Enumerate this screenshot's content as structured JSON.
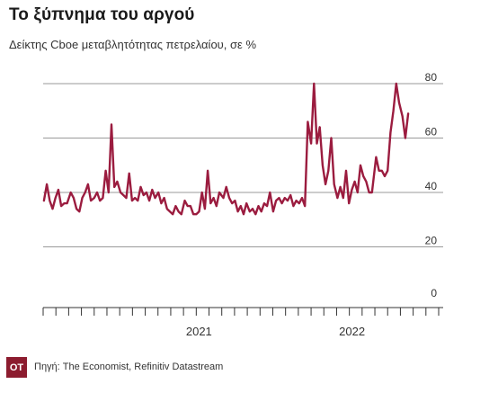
{
  "chart_data": {
    "type": "line",
    "title": "Το ξύπνημα του αργού",
    "subtitle": "Δείκτης Cboe μεταβλητότητας πετρελαίου, σε %",
    "xlabel": "",
    "ylabel": "",
    "ylim": [
      0,
      80
    ],
    "yticks": [
      0,
      20,
      40,
      60,
      80
    ],
    "x_range": [
      "2020-01",
      "2022-08"
    ],
    "x_tick_labels": [
      {
        "label": "2021",
        "x": "2021-01"
      },
      {
        "label": "2022",
        "x": "2022-01"
      }
    ],
    "grid": true,
    "legend": "none",
    "color": "#9b1c3f",
    "series": [
      {
        "points": [
          [
            "2020-01-03",
            37
          ],
          [
            "2020-01-10",
            43
          ],
          [
            "2020-01-17",
            37
          ],
          [
            "2020-01-24",
            34
          ],
          [
            "2020-01-31",
            38
          ],
          [
            "2020-02-07",
            41
          ],
          [
            "2020-02-14",
            35
          ],
          [
            "2020-02-21",
            36
          ],
          [
            "2020-02-28",
            36
          ],
          [
            "2020-03-06",
            40
          ],
          [
            "2020-03-13",
            38
          ],
          [
            "2020-03-20",
            34
          ],
          [
            "2020-03-27",
            33
          ],
          [
            "2020-04-03",
            38
          ],
          [
            "2020-04-10",
            40
          ],
          [
            "2020-04-17",
            43
          ],
          [
            "2020-04-24",
            37
          ],
          [
            "2020-05-01",
            38
          ],
          [
            "2020-05-08",
            40
          ],
          [
            "2020-05-15",
            37
          ],
          [
            "2020-05-22",
            38
          ],
          [
            "2020-05-29",
            48
          ],
          [
            "2020-06-05",
            40
          ],
          [
            "2020-06-12",
            65
          ],
          [
            "2020-06-19",
            42
          ],
          [
            "2020-06-26",
            44
          ],
          [
            "2020-07-03",
            40
          ],
          [
            "2020-07-10",
            39
          ],
          [
            "2020-07-17",
            38
          ],
          [
            "2020-07-24",
            47
          ],
          [
            "2020-07-31",
            37
          ],
          [
            "2020-08-07",
            38
          ],
          [
            "2020-08-14",
            37
          ],
          [
            "2020-08-21",
            42
          ],
          [
            "2020-08-28",
            39
          ],
          [
            "2020-09-04",
            40
          ],
          [
            "2020-09-11",
            37
          ],
          [
            "2020-09-18",
            41
          ],
          [
            "2020-09-25",
            38
          ],
          [
            "2020-10-02",
            40
          ],
          [
            "2020-10-09",
            36
          ],
          [
            "2020-10-16",
            38
          ],
          [
            "2020-10-23",
            34
          ],
          [
            "2020-10-30",
            33
          ],
          [
            "2020-11-06",
            32
          ],
          [
            "2020-11-13",
            35
          ],
          [
            "2020-11-20",
            33
          ],
          [
            "2020-11-27",
            32
          ],
          [
            "2020-12-04",
            37
          ],
          [
            "2020-12-11",
            35
          ],
          [
            "2020-12-18",
            35
          ],
          [
            "2020-12-25",
            32
          ],
          [
            "2021-01-01",
            32
          ],
          [
            "2021-01-08",
            33
          ],
          [
            "2021-01-15",
            40
          ],
          [
            "2021-01-22",
            34
          ],
          [
            "2021-01-29",
            48
          ],
          [
            "2021-02-05",
            36
          ],
          [
            "2021-02-12",
            38
          ],
          [
            "2021-02-19",
            35
          ],
          [
            "2021-02-26",
            40
          ],
          [
            "2021-03-05",
            38
          ],
          [
            "2021-03-12",
            42
          ],
          [
            "2021-03-19",
            38
          ],
          [
            "2021-03-26",
            36
          ],
          [
            "2021-04-02",
            37
          ],
          [
            "2021-04-09",
            33
          ],
          [
            "2021-04-16",
            35
          ],
          [
            "2021-04-23",
            32
          ],
          [
            "2021-04-30",
            36
          ],
          [
            "2021-05-07",
            33
          ],
          [
            "2021-05-14",
            34
          ],
          [
            "2021-05-21",
            32
          ],
          [
            "2021-05-28",
            35
          ],
          [
            "2021-06-04",
            33
          ],
          [
            "2021-06-11",
            36
          ],
          [
            "2021-06-18",
            35
          ],
          [
            "2021-06-25",
            40
          ],
          [
            "2021-07-02",
            33
          ],
          [
            "2021-07-09",
            37
          ],
          [
            "2021-07-16",
            38
          ],
          [
            "2021-07-23",
            36
          ],
          [
            "2021-07-30",
            38
          ],
          [
            "2021-08-06",
            37
          ],
          [
            "2021-08-13",
            39
          ],
          [
            "2021-08-20",
            35
          ],
          [
            "2021-08-27",
            37
          ],
          [
            "2021-09-03",
            36
          ],
          [
            "2021-09-10",
            38
          ],
          [
            "2021-09-17",
            35
          ],
          [
            "2021-09-24",
            66
          ],
          [
            "2021-10-01",
            58
          ],
          [
            "2021-10-08",
            80
          ],
          [
            "2021-10-15",
            58
          ],
          [
            "2021-10-22",
            64
          ],
          [
            "2021-10-29",
            50
          ],
          [
            "2021-11-05",
            43
          ],
          [
            "2021-11-12",
            48
          ],
          [
            "2021-11-19",
            60
          ],
          [
            "2021-11-26",
            43
          ],
          [
            "2021-12-03",
            38
          ],
          [
            "2021-12-10",
            42
          ],
          [
            "2021-12-17",
            38
          ],
          [
            "2021-12-24",
            48
          ],
          [
            "2021-12-31",
            36
          ],
          [
            "2022-01-07",
            41
          ],
          [
            "2022-01-14",
            44
          ],
          [
            "2022-01-21",
            40
          ],
          [
            "2022-01-28",
            50
          ],
          [
            "2022-02-04",
            46
          ],
          [
            "2022-02-11",
            44
          ],
          [
            "2022-02-18",
            40
          ],
          [
            "2022-02-25",
            40
          ],
          [
            "2022-03-04",
            53
          ],
          [
            "2022-03-11",
            48
          ],
          [
            "2022-03-18",
            48
          ],
          [
            "2022-03-25",
            46
          ],
          [
            "2022-04-01",
            48
          ],
          [
            "2022-04-08",
            62
          ],
          [
            "2022-04-15",
            70
          ],
          [
            "2022-04-22",
            80
          ],
          [
            "2022-04-29",
            73
          ],
          [
            "2022-05-06",
            68
          ],
          [
            "2022-05-13",
            60
          ],
          [
            "2022-05-20",
            69
          ]
        ]
      }
    ]
  },
  "footer": {
    "logo_text": "OT",
    "source": "Πηγή: The Economist, Refinitiv Datastream"
  }
}
